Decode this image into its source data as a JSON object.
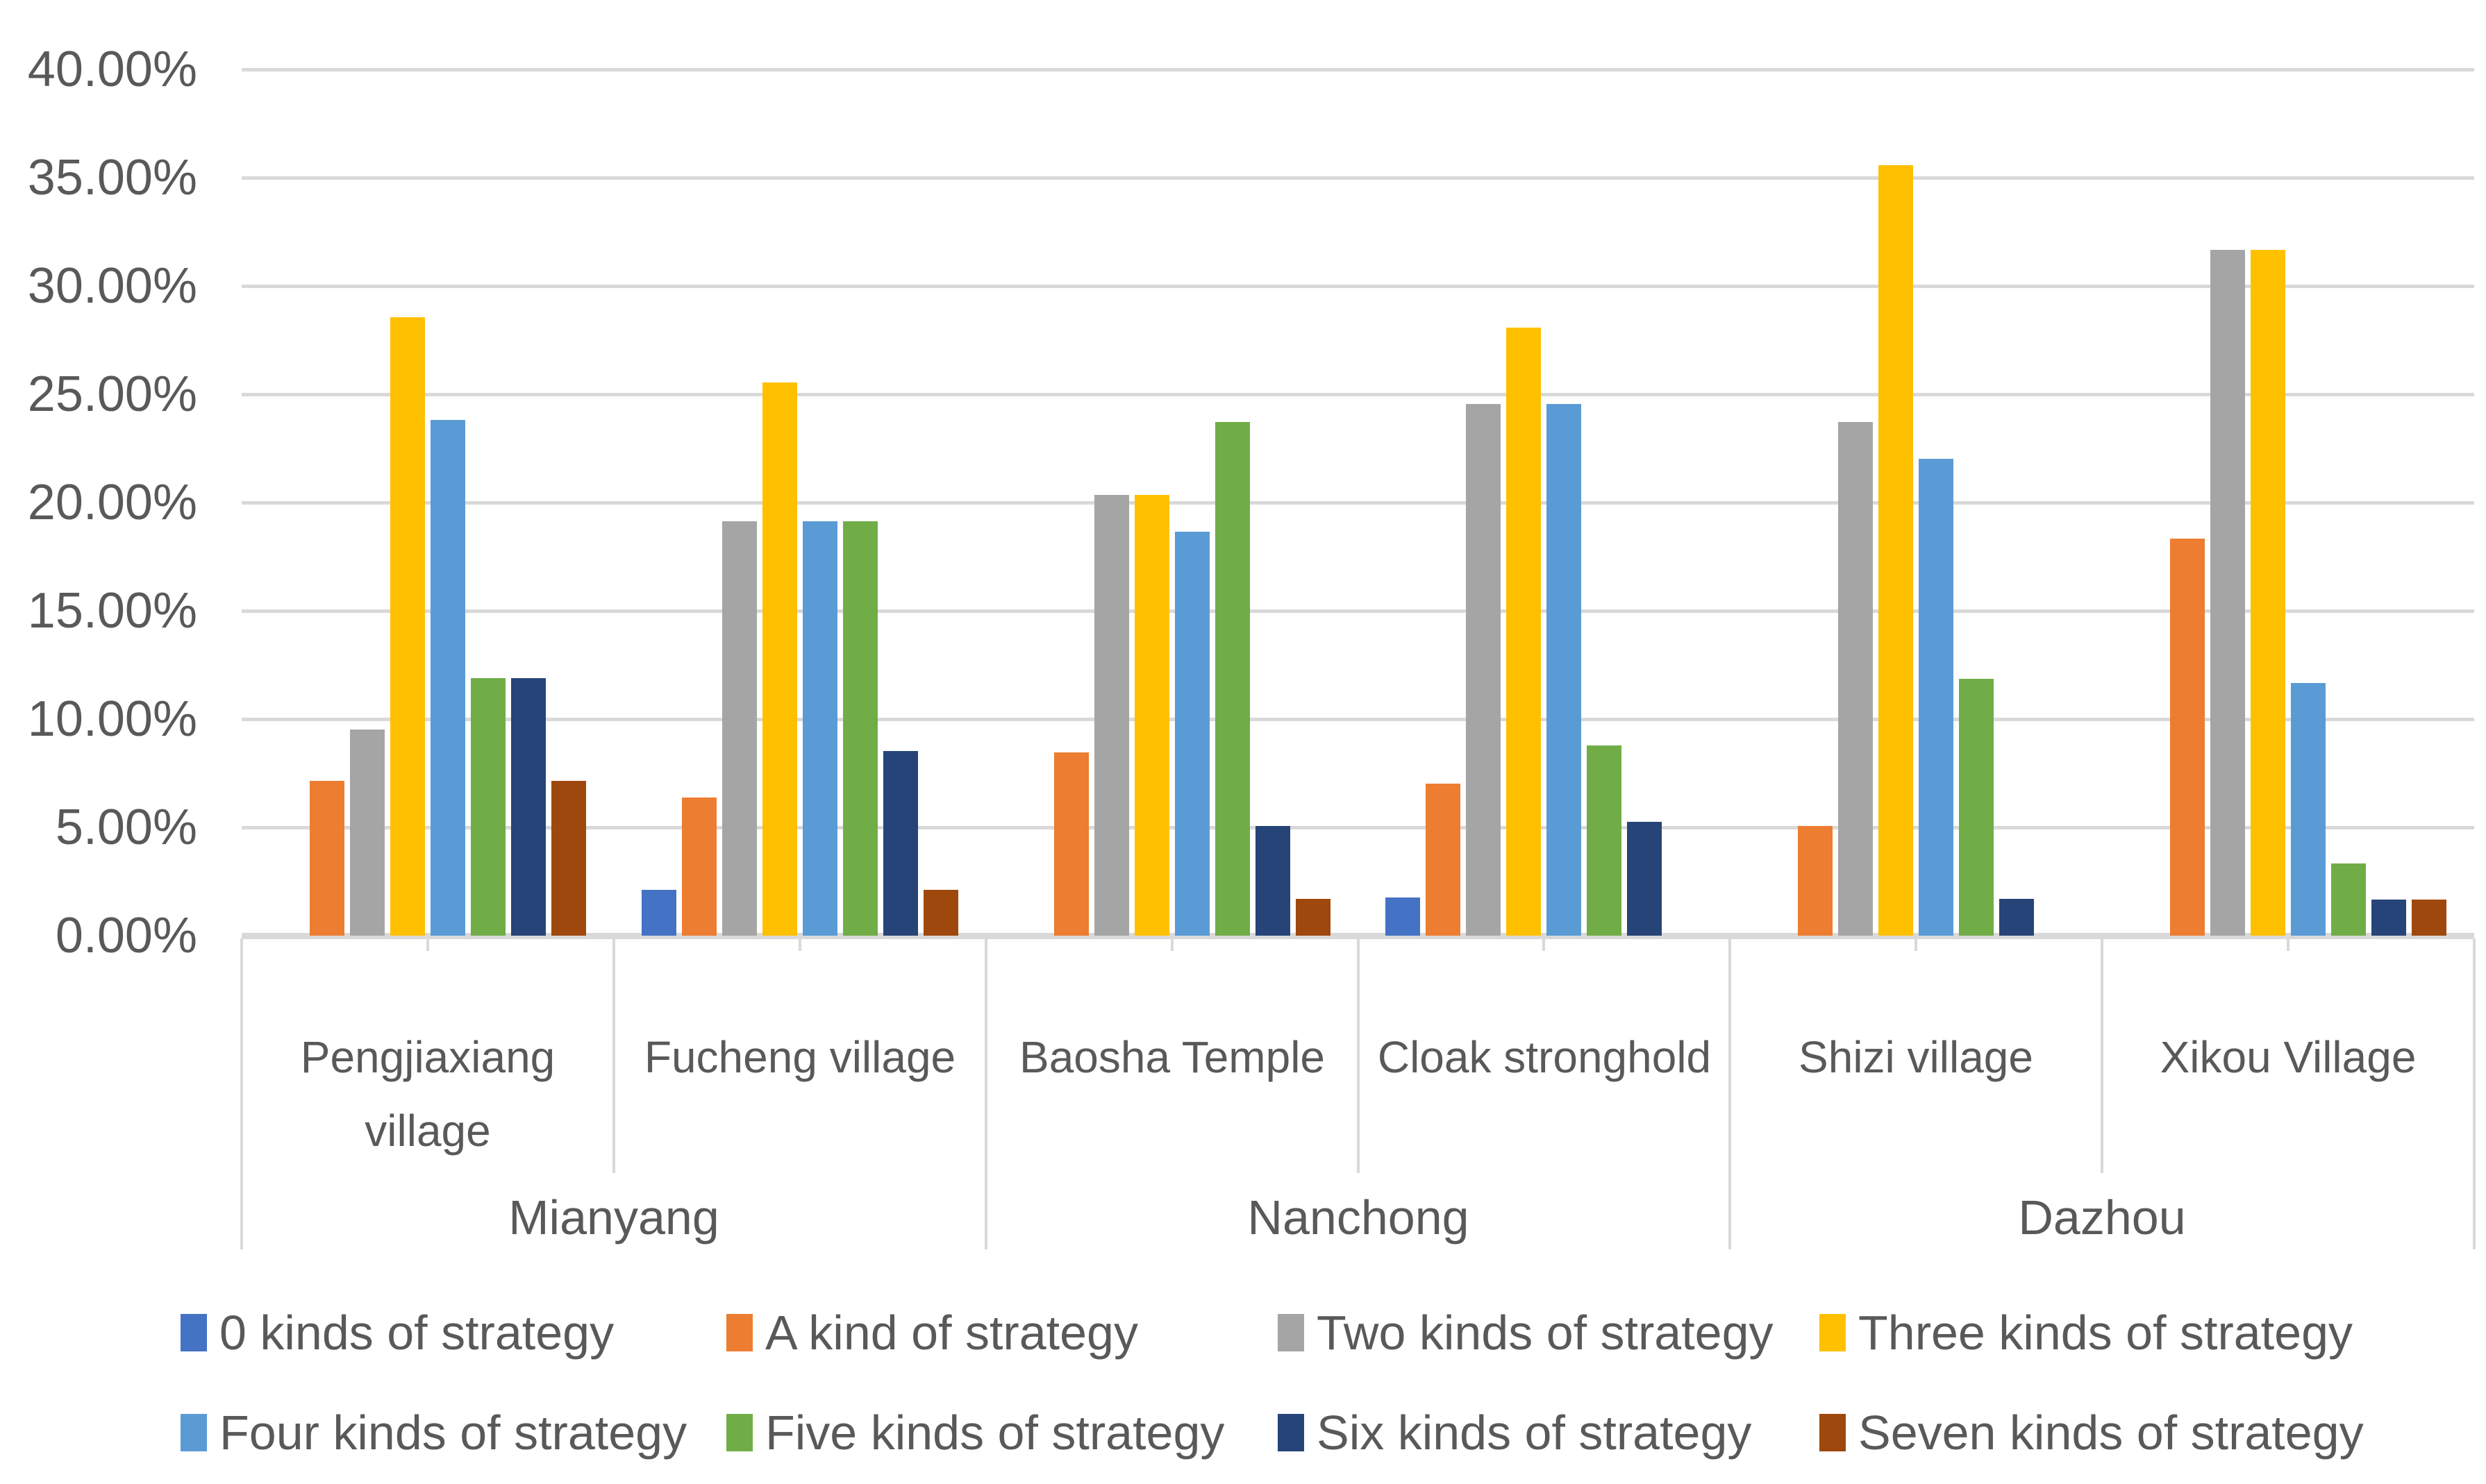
{
  "chart_data": {
    "type": "bar",
    "title": "",
    "xlabel": "",
    "ylabel": "",
    "grid": true,
    "legend_position": "bottom",
    "y_axis": {
      "min": 0,
      "max": 40,
      "step": 5,
      "tick_labels": [
        "40.00%",
        "35.00%",
        "30.00%",
        "25.00%",
        "20.00%",
        "15.00%",
        "10.00%",
        "5.00%",
        "0.00%"
      ]
    },
    "categories": [
      {
        "label": "Pengjiaxiang village",
        "city": "Mianyang"
      },
      {
        "label": "Fucheng village",
        "city": "Mianyang"
      },
      {
        "label": "Baosha Temple",
        "city": "Nanchong"
      },
      {
        "label": "Cloak stronghold",
        "city": "Nanchong"
      },
      {
        "label": "Shizi village",
        "city": "Dazhou"
      },
      {
        "label": "Xikou Village",
        "city": "Dazhou"
      }
    ],
    "city_groups": [
      {
        "label": "Mianyang",
        "span": 2
      },
      {
        "label": "Nanchong",
        "span": 2
      },
      {
        "label": "Dazhou",
        "span": 2
      }
    ],
    "series": [
      {
        "name": "0 kinds of strategy",
        "color": "#4472C4",
        "values": [
          0,
          2.13,
          0,
          1.75,
          0,
          0
        ]
      },
      {
        "name": "A kind of strategy",
        "color": "#ED7D31",
        "values": [
          7.14,
          6.38,
          8.47,
          7.02,
          5.08,
          18.33
        ]
      },
      {
        "name": "Two kinds of strategy",
        "color": "#A5A5A5",
        "values": [
          9.52,
          19.15,
          20.34,
          24.56,
          23.73,
          31.67
        ]
      },
      {
        "name": "Three kinds of strategy",
        "color": "#FFC000",
        "values": [
          28.57,
          25.53,
          20.34,
          28.07,
          35.59,
          31.67
        ]
      },
      {
        "name": "Four kinds of strategy",
        "color": "#5B9BD5",
        "values": [
          23.81,
          19.15,
          18.64,
          24.56,
          22.03,
          11.67
        ]
      },
      {
        "name": "Five kinds of strategy",
        "color": "#70AD47",
        "values": [
          11.9,
          19.15,
          23.73,
          8.77,
          11.86,
          3.33
        ]
      },
      {
        "name": "Six kinds of strategy",
        "color": "#264478",
        "values": [
          11.9,
          8.51,
          5.08,
          5.26,
          1.69,
          1.67
        ]
      },
      {
        "name": "Seven kinds of strategy",
        "color": "#9E480E",
        "values": [
          7.14,
          2.13,
          1.69,
          0,
          0,
          1.67
        ]
      }
    ],
    "colors": {
      "gridline": "#d9d9d9",
      "axis_line": "#d9d9d9",
      "text": "#595959",
      "background": "#ffffff"
    }
  }
}
